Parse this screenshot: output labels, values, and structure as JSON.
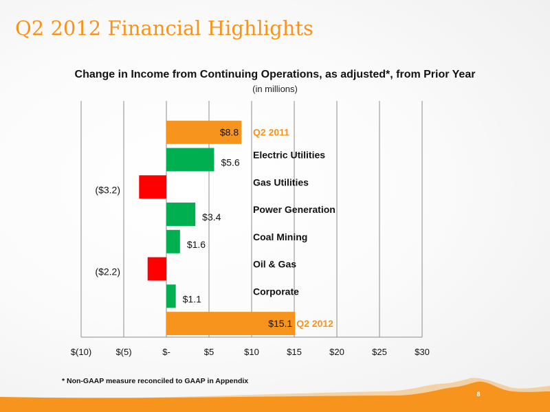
{
  "slide": {
    "title": "Q2 2012 Financial Highlights",
    "footnote": "* Non-GAAP measure reconciled to GAAP in Appendix",
    "page_number": "8"
  },
  "colors": {
    "accent": "#f7941d",
    "positive": "#00b050",
    "negative": "#ff0000",
    "orange_label": "#f7941d"
  },
  "chart_data": {
    "type": "bar",
    "orientation": "horizontal",
    "style": "waterfall",
    "title": "Change in Income from Continuing Operations, as adjusted*, from Prior Year",
    "subtitle": "(in millions)",
    "xlim": [
      -10,
      30
    ],
    "ticks": [
      -10,
      -5,
      0,
      5,
      10,
      15,
      20,
      25,
      30
    ],
    "tick_labels": [
      "$(10)",
      "$(5)",
      "$-",
      "$5",
      "$10",
      "$15",
      "$20",
      "$25",
      "$30"
    ],
    "grid": "vertical",
    "bars": [
      {
        "category": "Q2 2011",
        "value": 8.8,
        "value_label": "$8.8",
        "kind": "total"
      },
      {
        "category": "Electric Utilities",
        "value": 5.6,
        "value_label": "$5.6",
        "kind": "positive"
      },
      {
        "category": "Gas Utilities",
        "value": -3.2,
        "value_label": "($3.2)",
        "kind": "negative"
      },
      {
        "category": "Power Generation",
        "value": 3.4,
        "value_label": "$3.4",
        "kind": "positive"
      },
      {
        "category": "Coal Mining",
        "value": 1.6,
        "value_label": "$1.6",
        "kind": "positive"
      },
      {
        "category": "Oil & Gas",
        "value": -2.2,
        "value_label": "($2.2)",
        "kind": "negative"
      },
      {
        "category": "Corporate",
        "value": 1.1,
        "value_label": "$1.1",
        "kind": "positive"
      },
      {
        "category": "Q2 2012",
        "value": 15.1,
        "value_label": "$15.1",
        "kind": "total"
      }
    ]
  }
}
